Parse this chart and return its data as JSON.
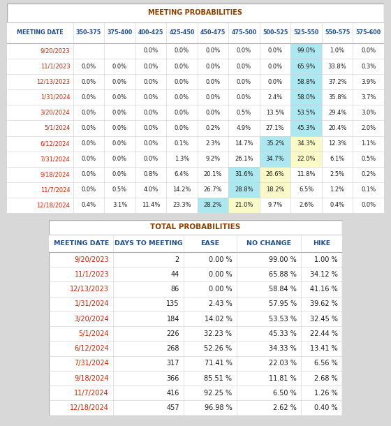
{
  "title1": "MEETING PROBABILITIES",
  "title2": "TOTAL PROBABILITIES",
  "title_color": "#8B4000",
  "header_color": "#1E4F8C",
  "table1_header": [
    "MEETING DATE",
    "350-375",
    "375-400",
    "400-425",
    "425-450",
    "450-475",
    "475-500",
    "500-525",
    "525-550",
    "550-575",
    "575-600"
  ],
  "table1_rows": [
    [
      "9/20/2023",
      "",
      "",
      "0.0%",
      "0.0%",
      "0.0%",
      "0.0%",
      "0.0%",
      "99.0%",
      "1.0%",
      "0.0%"
    ],
    [
      "11/1/2023",
      "0.0%",
      "0.0%",
      "0.0%",
      "0.0%",
      "0.0%",
      "0.0%",
      "0.0%",
      "65.9%",
      "33.8%",
      "0.3%"
    ],
    [
      "12/13/2023",
      "0.0%",
      "0.0%",
      "0.0%",
      "0.0%",
      "0.0%",
      "0.0%",
      "0.0%",
      "58.8%",
      "37.2%",
      "3.9%"
    ],
    [
      "1/31/2024",
      "0.0%",
      "0.0%",
      "0.0%",
      "0.0%",
      "0.0%",
      "0.0%",
      "2.4%",
      "58.0%",
      "35.8%",
      "3.7%"
    ],
    [
      "3/20/2024",
      "0.0%",
      "0.0%",
      "0.0%",
      "0.0%",
      "0.0%",
      "0.5%",
      "13.5%",
      "53.5%",
      "29.4%",
      "3.0%"
    ],
    [
      "5/1/2024",
      "0.0%",
      "0.0%",
      "0.0%",
      "0.0%",
      "0.2%",
      "4.9%",
      "27.1%",
      "45.3%",
      "20.4%",
      "2.0%"
    ],
    [
      "6/12/2024",
      "0.0%",
      "0.0%",
      "0.0%",
      "0.1%",
      "2.3%",
      "14.7%",
      "35.2%",
      "34.3%",
      "12.3%",
      "1.1%"
    ],
    [
      "7/31/2024",
      "0.0%",
      "0.0%",
      "0.0%",
      "1.3%",
      "9.2%",
      "26.1%",
      "34.7%",
      "22.0%",
      "6.1%",
      "0.5%"
    ],
    [
      "9/18/2024",
      "0.0%",
      "0.0%",
      "0.8%",
      "6.4%",
      "20.1%",
      "31.6%",
      "26.6%",
      "11.8%",
      "2.5%",
      "0.2%"
    ],
    [
      "11/7/2024",
      "0.0%",
      "0.5%",
      "4.0%",
      "14.2%",
      "26.7%",
      "28.8%",
      "18.2%",
      "6.5%",
      "1.2%",
      "0.1%"
    ],
    [
      "12/18/2024",
      "0.4%",
      "3.1%",
      "11.4%",
      "23.3%",
      "28.2%",
      "21.0%",
      "9.7%",
      "2.6%",
      "0.4%",
      "0.0%"
    ]
  ],
  "table1_highlight_cyan": [
    [
      0,
      8
    ],
    [
      1,
      8
    ],
    [
      2,
      8
    ],
    [
      3,
      8
    ],
    [
      4,
      8
    ],
    [
      5,
      8
    ],
    [
      6,
      7
    ],
    [
      7,
      7
    ],
    [
      8,
      6
    ],
    [
      9,
      6
    ],
    [
      10,
      5
    ]
  ],
  "table1_highlight_yellow": [
    [
      6,
      8
    ],
    [
      7,
      8
    ],
    [
      8,
      7
    ],
    [
      9,
      7
    ],
    [
      10,
      6
    ]
  ],
  "cyan_color": "#ADE8F0",
  "yellow_color": "#FAFAC8",
  "table2_header": [
    "MEETING DATE",
    "DAYS TO MEETING",
    "EASE",
    "NO CHANGE",
    "HIKE"
  ],
  "table2_rows": [
    [
      "9/20/2023",
      "2",
      "0.00 %",
      "99.00 %",
      "1.00 %"
    ],
    [
      "11/1/2023",
      "44",
      "0.00 %",
      "65.88 %",
      "34.12 %"
    ],
    [
      "12/13/2023",
      "86",
      "0.00 %",
      "58.84 %",
      "41.16 %"
    ],
    [
      "1/31/2024",
      "135",
      "2.43 %",
      "57.95 %",
      "39.62 %"
    ],
    [
      "3/20/2024",
      "184",
      "14.02 %",
      "53.53 %",
      "32.45 %"
    ],
    [
      "5/1/2024",
      "226",
      "32.23 %",
      "45.33 %",
      "22.44 %"
    ],
    [
      "6/12/2024",
      "268",
      "52.26 %",
      "34.33 %",
      "13.41 %"
    ],
    [
      "7/31/2024",
      "317",
      "71.41 %",
      "22.03 %",
      "6.56 %"
    ],
    [
      "9/18/2024",
      "366",
      "85.51 %",
      "11.81 %",
      "2.68 %"
    ],
    [
      "11/7/2024",
      "416",
      "92.25 %",
      "6.50 %",
      "1.26 %"
    ],
    [
      "12/18/2024",
      "457",
      "96.98 %",
      "2.62 %",
      "0.40 %"
    ]
  ],
  "date_col_color": "#CC2200",
  "data_col_color": "#1A1A1A",
  "outer_bg": "#D8D8D8",
  "table_bg": "#FFFFFF",
  "border_color": "#AAAAAA",
  "grid_color": "#CCCCCC"
}
